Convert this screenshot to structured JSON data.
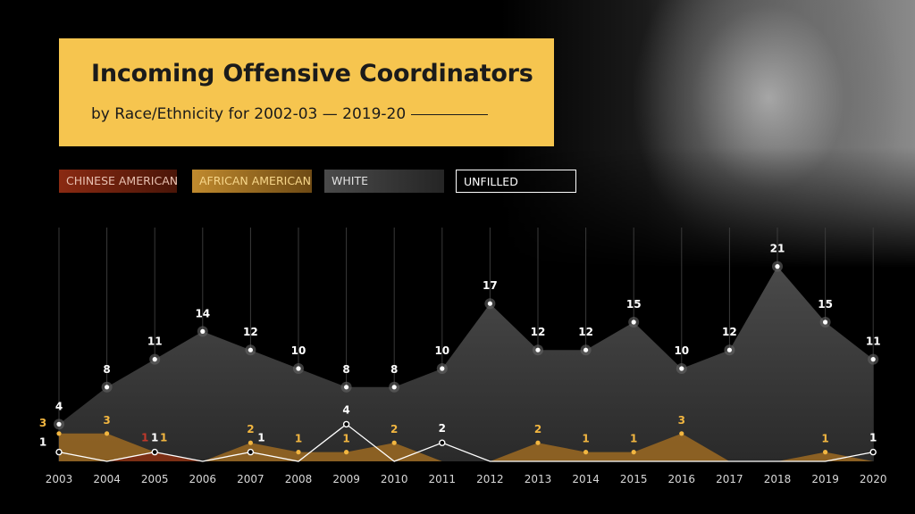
{
  "title": "Incoming Offensive Coordinators",
  "subtitle": "by Race/Ethnicity for 2002-03 — 2019-20",
  "legend": [
    {
      "label": "CHINESE AMERICAN",
      "color": "#8a2a12"
    },
    {
      "label": "AFRICAN AMERICAN",
      "color": "#b87a26"
    },
    {
      "label": "WHITE",
      "color": "#3a3a3a"
    },
    {
      "label": "UNFILLED",
      "color": "#ffffff"
    }
  ],
  "chart_data": {
    "type": "area",
    "title": "Incoming Offensive Coordinators",
    "subtitle": "by Race/Ethnicity for 2002-03 — 2019-20",
    "x": [
      "2003",
      "2004",
      "2005",
      "2006",
      "2007",
      "2008",
      "2009",
      "2010",
      "2011",
      "2012",
      "2013",
      "2014",
      "2015",
      "2016",
      "2017",
      "2018",
      "2019",
      "2020"
    ],
    "ylim": [
      0,
      22
    ],
    "series": [
      {
        "name": "WHITE",
        "color": "#3d3d3d",
        "labelColor": "#ffffff",
        "values": [
          4,
          8,
          11,
          14,
          12,
          10,
          8,
          8,
          10,
          17,
          12,
          12,
          15,
          10,
          12,
          21,
          15,
          11
        ]
      },
      {
        "name": "AFRICAN AMERICAN",
        "color": "#9c6a22",
        "labelColor": "#f2b640",
        "values": [
          3,
          3,
          1,
          0,
          2,
          1,
          1,
          2,
          0,
          0,
          2,
          1,
          1,
          3,
          0,
          0,
          1,
          0
        ]
      },
      {
        "name": "CHINESE AMERICAN",
        "color": "#7a2a14",
        "labelColor": "#c0392b",
        "values": [
          0,
          0,
          1,
          0,
          0,
          0,
          0,
          0,
          0,
          0,
          0,
          0,
          0,
          0,
          0,
          0,
          0,
          0
        ]
      },
      {
        "name": "UNFILLED",
        "color": "#ffffff",
        "labelColor": "#ffffff",
        "values": [
          1,
          0,
          1,
          0,
          1,
          0,
          4,
          0,
          2,
          0,
          0,
          0,
          0,
          0,
          0,
          0,
          0,
          1
        ]
      }
    ]
  }
}
